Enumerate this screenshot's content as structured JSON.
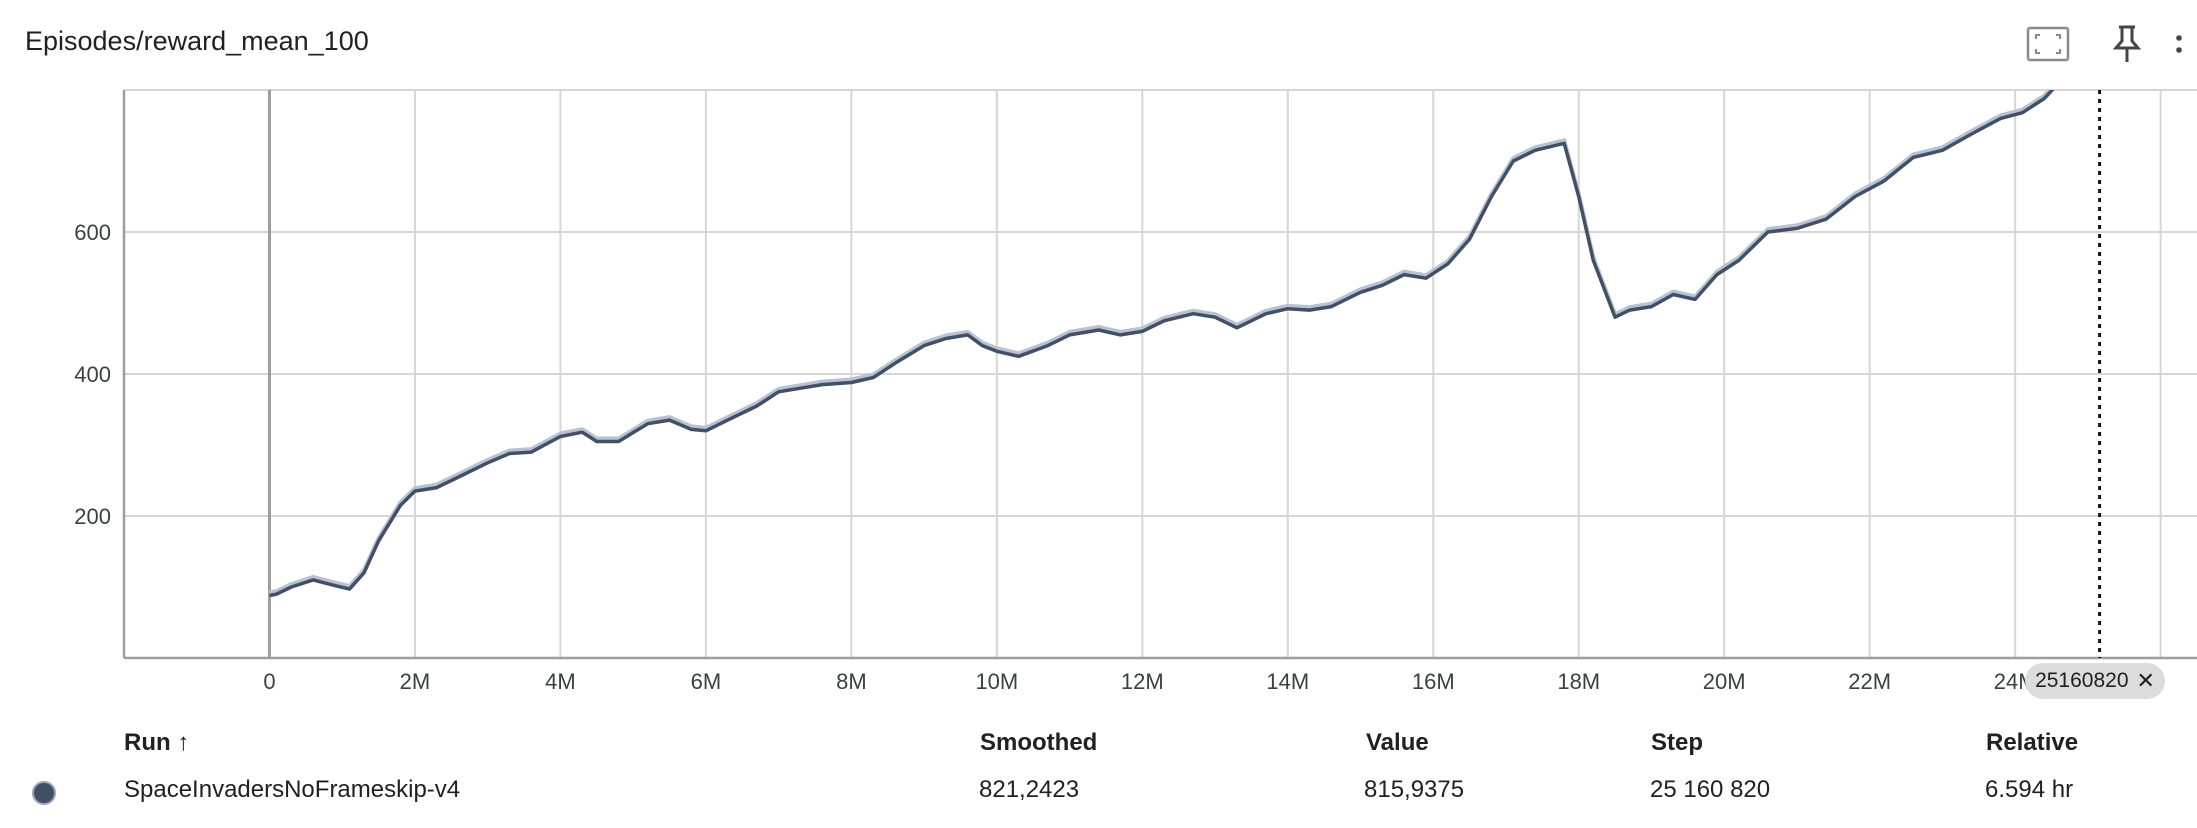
{
  "card": {
    "title": "Episodes/reward_mean_100",
    "fullscreen_icon": "fullscreen-icon",
    "pin_icon": "pin-icon",
    "more_icon": "more-vert-icon"
  },
  "colors": {
    "smoothed_line": "#425066",
    "raw_line": "#b9c2d2",
    "grid": "#d6d6d6",
    "axis": "#9e9e9e"
  },
  "step_chip": {
    "label": "25160820",
    "close": "✕"
  },
  "chart_data": {
    "type": "line",
    "title": "Episodes/reward_mean_100",
    "x_ticks": [
      0,
      2000000,
      4000000,
      6000000,
      8000000,
      10000000,
      12000000,
      14000000,
      16000000,
      18000000,
      20000000,
      22000000,
      24000000
    ],
    "x_tick_labels": [
      "0",
      "2M",
      "4M",
      "6M",
      "8M",
      "10M",
      "12M",
      "14M",
      "16M",
      "18M",
      "20M",
      "22M",
      "24M"
    ],
    "y_ticks": [
      200,
      400,
      600
    ],
    "y_tick_labels": [
      "200",
      "400",
      "600"
    ],
    "xlim": [
      -2000000,
      26500000
    ],
    "ylim": [
      0,
      800
    ],
    "grid": true,
    "cursor_step": 25160820,
    "series": [
      {
        "name": "SpaceInvadersNoFrameskip-v4",
        "x": [
          0,
          100000,
          300000,
          600000,
          900000,
          1100000,
          1300000,
          1500000,
          1800000,
          2000000,
          2300000,
          2600000,
          3000000,
          3300000,
          3600000,
          4000000,
          4300000,
          4500000,
          4800000,
          5200000,
          5500000,
          5800000,
          6000000,
          6300000,
          6700000,
          7000000,
          7300000,
          7600000,
          8000000,
          8300000,
          8600000,
          9000000,
          9300000,
          9600000,
          9800000,
          10000000,
          10300000,
          10700000,
          11000000,
          11400000,
          11700000,
          12000000,
          12300000,
          12700000,
          13000000,
          13300000,
          13700000,
          14000000,
          14300000,
          14600000,
          15000000,
          15300000,
          15600000,
          15900000,
          16200000,
          16500000,
          16800000,
          17100000,
          17400000,
          17800000,
          18000000,
          18200000,
          18500000,
          18700000,
          19000000,
          19300000,
          19600000,
          19900000,
          20200000,
          20600000,
          21000000,
          21400000,
          21800000,
          22200000,
          22600000,
          23000000,
          23400000,
          23800000,
          24100000,
          24400000,
          24600000,
          24800000
        ],
        "y": [
          88,
          90,
          100,
          110,
          102,
          97,
          120,
          165,
          215,
          235,
          240,
          255,
          275,
          288,
          290,
          312,
          318,
          305,
          305,
          330,
          335,
          322,
          320,
          335,
          355,
          375,
          380,
          385,
          388,
          395,
          415,
          440,
          450,
          455,
          440,
          432,
          425,
          440,
          455,
          462,
          455,
          460,
          475,
          485,
          480,
          465,
          485,
          492,
          490,
          495,
          515,
          525,
          540,
          535,
          555,
          590,
          650,
          700,
          715,
          725,
          650,
          560,
          480,
          490,
          495,
          512,
          505,
          540,
          560,
          600,
          605,
          618,
          650,
          672,
          705,
          715,
          738,
          760,
          768,
          788,
          810,
          825
        ]
      }
    ]
  },
  "table": {
    "headers": {
      "run": "Run ↑",
      "smoothed": "Smoothed",
      "value": "Value",
      "step": "Step",
      "relative": "Relative"
    },
    "rows": [
      {
        "run": "SpaceInvadersNoFrameskip-v4",
        "smoothed": "821,2423",
        "value": "815,9375",
        "step": "25 160 820",
        "relative": "6.594 hr"
      }
    ]
  }
}
